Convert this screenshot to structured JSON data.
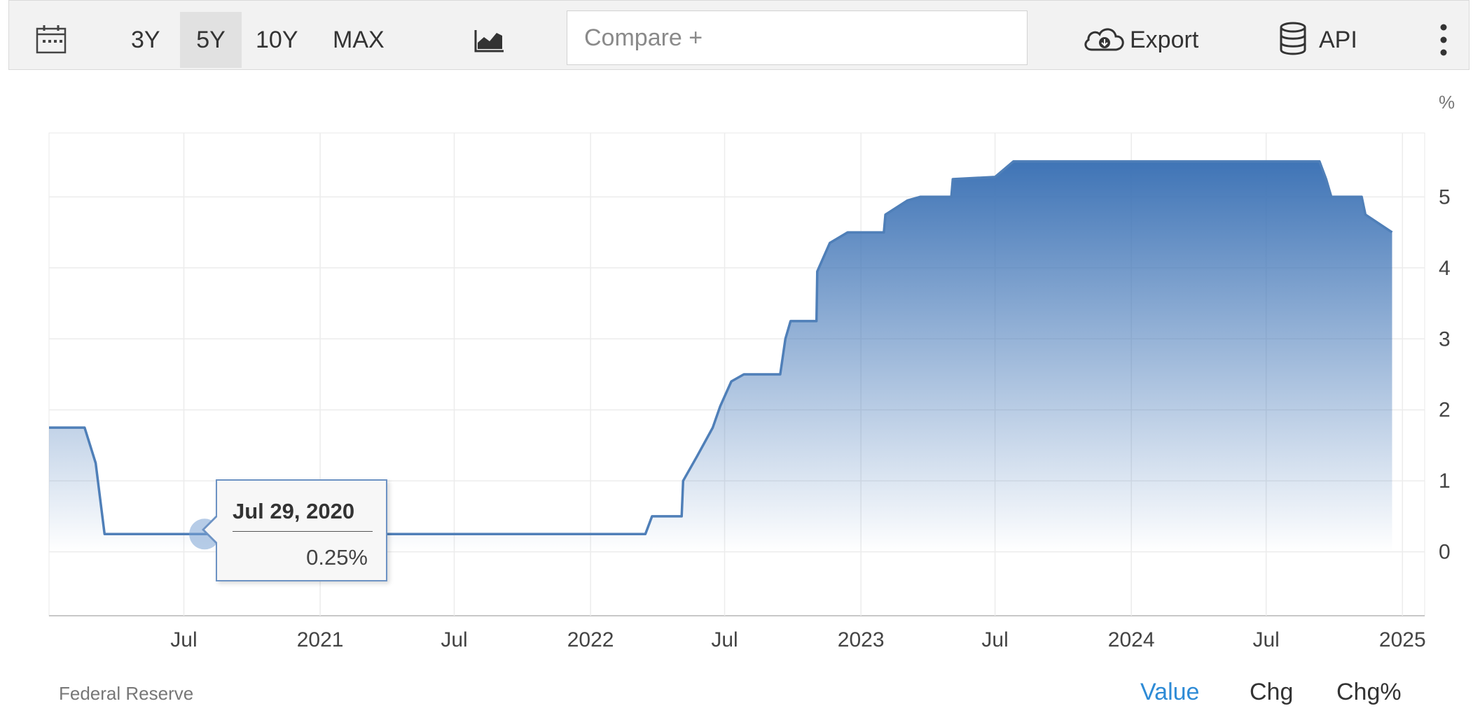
{
  "toolbar": {
    "icons": {
      "calendar": "calendar-icon",
      "chart_type": "area-chart-icon",
      "export": "cloud-download-icon",
      "api": "database-icon",
      "more": "more-vertical-icon"
    },
    "ranges": [
      "3Y",
      "5Y",
      "10Y",
      "MAX"
    ],
    "active_range": "5Y",
    "compare_placeholder": "Compare +",
    "export_label": "Export",
    "api_label": "API"
  },
  "tooltip": {
    "date": "Jul 29, 2020",
    "value": "0.25%"
  },
  "footer": {
    "source": "Federal Reserve",
    "views": [
      "Value",
      "Chg",
      "Chg%"
    ],
    "active_view": "Value"
  },
  "colors": {
    "line": "#4f7fb8",
    "fill_top": "#3d72b4",
    "active_link": "#2e8bd6"
  },
  "chart_data": {
    "type": "area",
    "unit": "%",
    "x_ticks": [
      "Jul",
      "2021",
      "Jul",
      "2022",
      "Jul",
      "2023",
      "Jul",
      "2024",
      "Jul",
      "2025"
    ],
    "y_ticks": [
      0,
      1,
      2,
      3,
      4,
      5
    ],
    "ylim": [
      -0.9,
      5.9
    ],
    "xlim": [
      "2020-01-01",
      "2025-01-31"
    ],
    "series": [
      {
        "points": [
          [
            "2020-01-01",
            1.75
          ],
          [
            "2020-02-18",
            1.75
          ],
          [
            "2020-03-04",
            1.25
          ],
          [
            "2020-03-16",
            0.25
          ],
          [
            "2022-03-16",
            0.25
          ],
          [
            "2022-03-25",
            0.5
          ],
          [
            "2022-05-04",
            0.5
          ],
          [
            "2022-05-06",
            1.0
          ],
          [
            "2022-05-25",
            1.35
          ],
          [
            "2022-06-15",
            1.75
          ],
          [
            "2022-06-25",
            2.05
          ],
          [
            "2022-07-10",
            2.4
          ],
          [
            "2022-07-27",
            2.5
          ],
          [
            "2022-09-14",
            2.5
          ],
          [
            "2022-09-21",
            3.0
          ],
          [
            "2022-09-28",
            3.25
          ],
          [
            "2022-11-02",
            3.25
          ],
          [
            "2022-11-03",
            3.95
          ],
          [
            "2022-11-20",
            4.35
          ],
          [
            "2022-12-14",
            4.5
          ],
          [
            "2023-02-01",
            4.5
          ],
          [
            "2023-02-03",
            4.75
          ],
          [
            "2023-03-05",
            4.95
          ],
          [
            "2023-03-22",
            5.0
          ],
          [
            "2023-05-03",
            5.0
          ],
          [
            "2023-05-05",
            5.25
          ],
          [
            "2023-07-01",
            5.28
          ],
          [
            "2023-07-26",
            5.5
          ],
          [
            "2024-09-11",
            5.5
          ],
          [
            "2024-09-20",
            5.25
          ],
          [
            "2024-09-27",
            5.0
          ],
          [
            "2024-11-07",
            5.0
          ],
          [
            "2024-11-12",
            4.75
          ],
          [
            "2024-12-18",
            4.5
          ]
        ]
      }
    ],
    "highlight_point": [
      "2020-07-29",
      0.25
    ]
  }
}
